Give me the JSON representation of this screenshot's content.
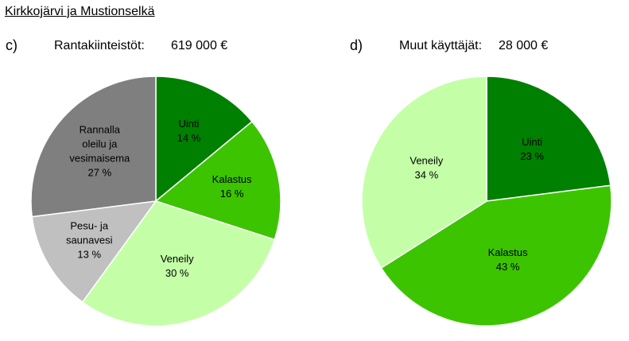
{
  "title": "Kirkkojärvi ja Mustionselkä",
  "chart_data": [
    {
      "type": "pie",
      "panel": "c)",
      "title": "Rantakiinteistöt:",
      "amount": "619 000 €",
      "slices": [
        {
          "label_lines": [
            "Uinti"
          ],
          "value": 14,
          "value_text": "14 %",
          "color": "#008000"
        },
        {
          "label_lines": [
            "Kalastus"
          ],
          "value": 16,
          "value_text": "16 %",
          "color": "#3cc400"
        },
        {
          "label_lines": [
            "Veneily"
          ],
          "value": 30,
          "value_text": "30 %",
          "color": "#c4ffa8"
        },
        {
          "label_lines": [
            "Pesu- ja",
            "saunavesi"
          ],
          "value": 13,
          "value_text": "13 %",
          "color": "#c0c0c0"
        },
        {
          "label_lines": [
            "Rannalla",
            "oleilu ja",
            "vesimaisema"
          ],
          "value": 27,
          "value_text": "27 %",
          "color": "#7f7f7f"
        }
      ]
    },
    {
      "type": "pie",
      "panel": "d)",
      "title": "Muut käyttäjät:",
      "amount": "28 000 €",
      "slices": [
        {
          "label_lines": [
            "Uinti"
          ],
          "value": 23,
          "value_text": "23 %",
          "color": "#008000"
        },
        {
          "label_lines": [
            "Kalastus"
          ],
          "value": 43,
          "value_text": "43 %",
          "color": "#3cc400"
        },
        {
          "label_lines": [
            "Veneily"
          ],
          "value": 34,
          "value_text": "34 %",
          "color": "#c4ffa8"
        }
      ]
    }
  ]
}
